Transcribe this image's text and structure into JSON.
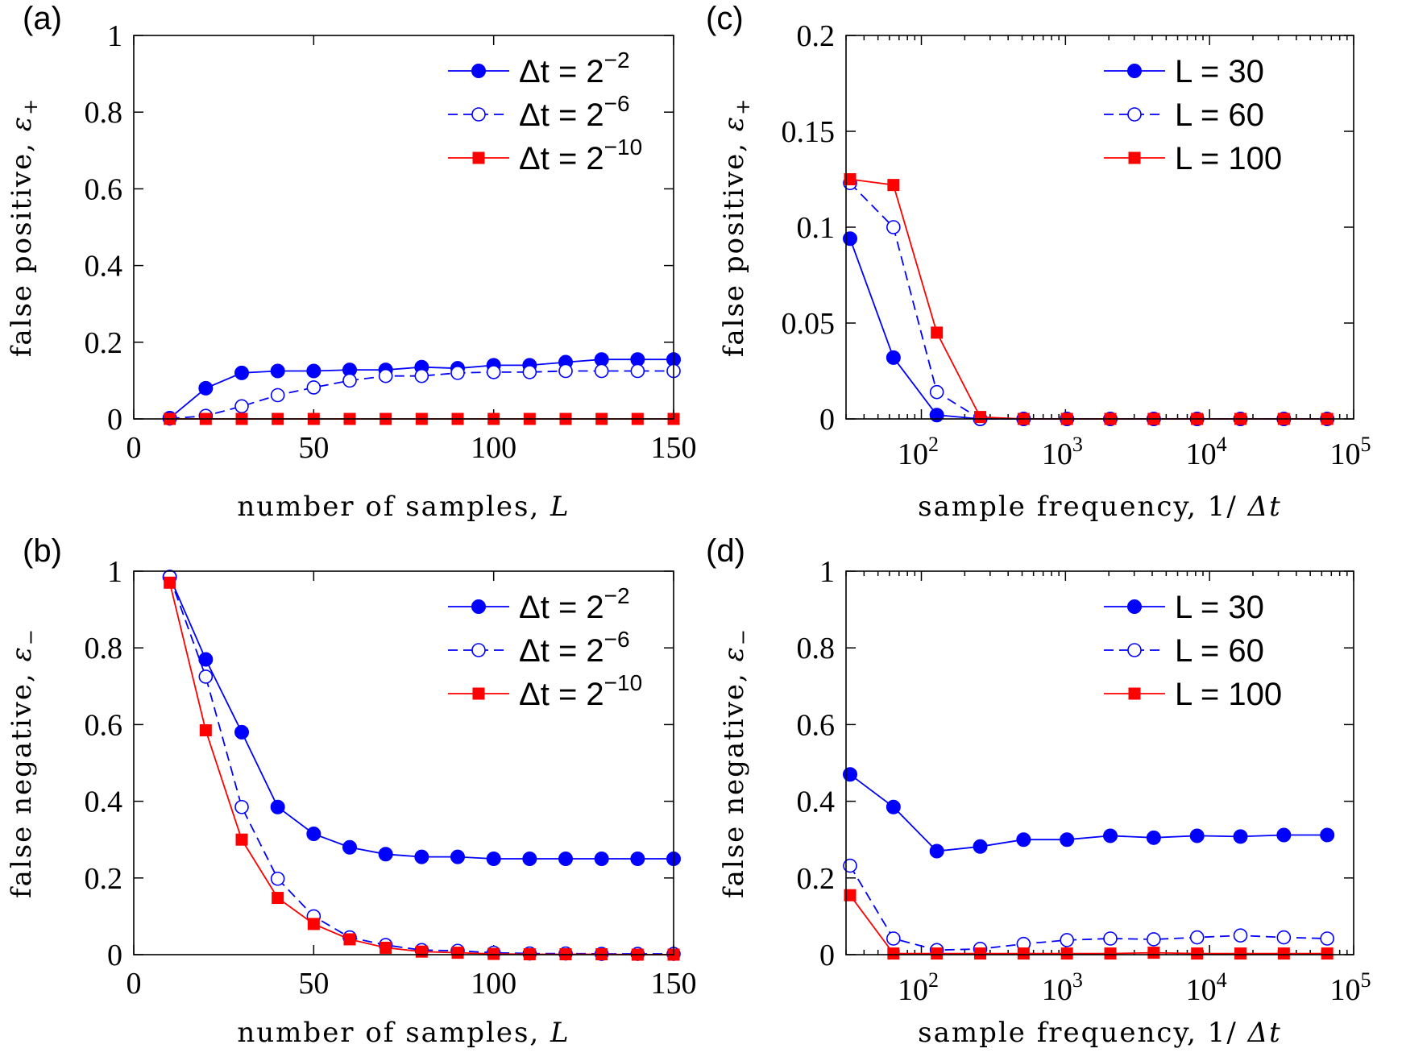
{
  "chart_data": [
    {
      "panel": "(a)",
      "type": "line",
      "xscale": "linear",
      "xlabel": "number of samples,",
      "xlabel_var": "L",
      "ylabel": "false positive,",
      "ylabel_var": "ε",
      "ylabel_sub": "+",
      "xlim": [
        0,
        150
      ],
      "ylim": [
        0,
        1
      ],
      "xticks": [
        0,
        50,
        100,
        150
      ],
      "xtick_labels": [
        "0",
        "50",
        "100",
        "150"
      ],
      "yticks": [
        0,
        0.2,
        0.4,
        0.6,
        0.8,
        1
      ],
      "ytick_labels": [
        "0",
        "0.2",
        "0.4",
        "0.6",
        "0.8",
        "1"
      ],
      "legend_position": "top-right",
      "x": [
        10,
        20,
        30,
        40,
        50,
        60,
        70,
        80,
        90,
        100,
        110,
        120,
        130,
        140,
        150
      ],
      "series": [
        {
          "name": "Δt = 2",
          "exp": "−2",
          "marker": "circle-filled",
          "dash": false,
          "color": "#0000ff",
          "values": [
            0.002,
            0.08,
            0.12,
            0.125,
            0.125,
            0.128,
            0.128,
            0.135,
            0.132,
            0.14,
            0.14,
            0.148,
            0.155,
            0.155,
            0.155
          ]
        },
        {
          "name": "Δt = 2",
          "exp": "−6",
          "marker": "circle-open",
          "dash": true,
          "color": "#0000ff",
          "values": [
            0.001,
            0.008,
            0.033,
            0.062,
            0.082,
            0.1,
            0.112,
            0.112,
            0.12,
            0.122,
            0.122,
            0.125,
            0.125,
            0.125,
            0.125
          ]
        },
        {
          "name": "Δt = 2",
          "exp": "−10",
          "marker": "square-filled",
          "dash": false,
          "color": "#ff0000",
          "values": [
            0,
            0,
            0,
            0,
            0,
            0,
            0,
            0,
            0,
            0,
            0,
            0,
            0,
            0,
            0
          ]
        }
      ]
    },
    {
      "panel": "(b)",
      "type": "line",
      "xscale": "linear",
      "xlabel": "number of samples,",
      "xlabel_var": "L",
      "ylabel": "false negative,",
      "ylabel_var": "ε",
      "ylabel_sub": "−",
      "xlim": [
        0,
        150
      ],
      "ylim": [
        0,
        1
      ],
      "xticks": [
        0,
        50,
        100,
        150
      ],
      "xtick_labels": [
        "0",
        "50",
        "100",
        "150"
      ],
      "yticks": [
        0,
        0.2,
        0.4,
        0.6,
        0.8,
        1
      ],
      "ytick_labels": [
        "0",
        "0.2",
        "0.4",
        "0.6",
        "0.8",
        "1"
      ],
      "legend_position": "top-right",
      "x": [
        10,
        20,
        30,
        40,
        50,
        60,
        70,
        80,
        90,
        100,
        110,
        120,
        130,
        140,
        150
      ],
      "series": [
        {
          "name": "Δt = 2",
          "exp": "−2",
          "marker": "circle-filled",
          "dash": false,
          "color": "#0000ff",
          "values": [
            0.985,
            0.77,
            0.58,
            0.385,
            0.315,
            0.28,
            0.262,
            0.255,
            0.255,
            0.25,
            0.25,
            0.25,
            0.25,
            0.25,
            0.25
          ]
        },
        {
          "name": "Δt = 2",
          "exp": "−6",
          "marker": "circle-open",
          "dash": true,
          "color": "#0000ff",
          "values": [
            0.985,
            0.725,
            0.385,
            0.198,
            0.1,
            0.045,
            0.025,
            0.012,
            0.01,
            0.005,
            0.003,
            0.003,
            0.002,
            0.002,
            0.002
          ]
        },
        {
          "name": "Δt = 2",
          "exp": "−10",
          "marker": "square-filled",
          "dash": false,
          "color": "#ff0000",
          "values": [
            0.97,
            0.585,
            0.3,
            0.148,
            0.08,
            0.04,
            0.018,
            0.008,
            0.005,
            0.002,
            0.001,
            0.001,
            0.001,
            0.0,
            0.0
          ]
        }
      ]
    },
    {
      "panel": "(c)",
      "type": "line",
      "xscale": "log",
      "xlabel": "sample frequency, 1/",
      "xlabel_var": "Δt",
      "ylabel": "false positive,",
      "ylabel_var": "ε",
      "ylabel_sub": "+",
      "xlim": [
        30,
        100000
      ],
      "ylim": [
        0,
        0.2
      ],
      "xticks": [
        100,
        1000,
        10000,
        100000
      ],
      "xtick_labels": [
        "10",
        "10",
        "10",
        "10"
      ],
      "xtick_exps": [
        "2",
        "3",
        "4",
        "5"
      ],
      "yticks": [
        0,
        0.05,
        0.1,
        0.15,
        0.2
      ],
      "ytick_labels": [
        "0",
        "0.05",
        "0.1",
        "0.15",
        "0.2"
      ],
      "legend_position": "top-right",
      "x": [
        32,
        64,
        128,
        256,
        512,
        1024,
        2048,
        4096,
        8192,
        16384,
        32768,
        65536
      ],
      "series": [
        {
          "name": "L = 30",
          "marker": "circle-filled",
          "dash": false,
          "color": "#0000ff",
          "values": [
            0.094,
            0.032,
            0.002,
            0.0,
            0.0,
            0.0,
            0.0,
            0.0,
            0.0,
            0.0,
            0.0,
            0.0
          ]
        },
        {
          "name": "L = 60",
          "marker": "circle-open",
          "dash": true,
          "color": "#0000ff",
          "values": [
            0.123,
            0.1,
            0.014,
            0.0,
            0.0,
            0.0,
            0.0,
            0.0,
            0.0,
            0.0,
            0.0,
            0.0
          ]
        },
        {
          "name": "L = 100",
          "marker": "square-filled",
          "dash": false,
          "color": "#ff0000",
          "values": [
            0.125,
            0.122,
            0.045,
            0.001,
            0.0,
            0.0,
            0.0,
            0.0,
            0.0,
            0.0,
            0.0,
            0.0
          ]
        }
      ]
    },
    {
      "panel": "(d)",
      "type": "line",
      "xscale": "log",
      "xlabel": "sample frequency, 1/",
      "xlabel_var": "Δt",
      "ylabel": "false negative,",
      "ylabel_var": "ε",
      "ylabel_sub": "−",
      "xlim": [
        30,
        100000
      ],
      "ylim": [
        0,
        1
      ],
      "xticks": [
        100,
        1000,
        10000,
        100000
      ],
      "xtick_labels": [
        "10",
        "10",
        "10",
        "10"
      ],
      "xtick_exps": [
        "2",
        "3",
        "4",
        "5"
      ],
      "yticks": [
        0,
        0.2,
        0.4,
        0.6,
        0.8,
        1
      ],
      "ytick_labels": [
        "0",
        "0.2",
        "0.4",
        "0.6",
        "0.8",
        "1"
      ],
      "legend_position": "top-right",
      "x": [
        32,
        64,
        128,
        256,
        512,
        1024,
        2048,
        4096,
        8192,
        16384,
        32768,
        65536
      ],
      "series": [
        {
          "name": "L = 30",
          "marker": "circle-filled",
          "dash": false,
          "color": "#0000ff",
          "values": [
            0.47,
            0.385,
            0.27,
            0.282,
            0.3,
            0.3,
            0.31,
            0.305,
            0.31,
            0.308,
            0.312,
            0.312
          ]
        },
        {
          "name": "L = 60",
          "marker": "circle-open",
          "dash": true,
          "color": "#0000ff",
          "values": [
            0.232,
            0.042,
            0.012,
            0.015,
            0.028,
            0.038,
            0.042,
            0.04,
            0.045,
            0.05,
            0.045,
            0.042
          ]
        },
        {
          "name": "L = 100",
          "marker": "square-filled",
          "dash": false,
          "color": "#ff0000",
          "values": [
            0.155,
            0.003,
            0.003,
            0.003,
            0.003,
            0.003,
            0.003,
            0.005,
            0.003,
            0.003,
            0.003,
            0.003
          ]
        }
      ]
    }
  ]
}
